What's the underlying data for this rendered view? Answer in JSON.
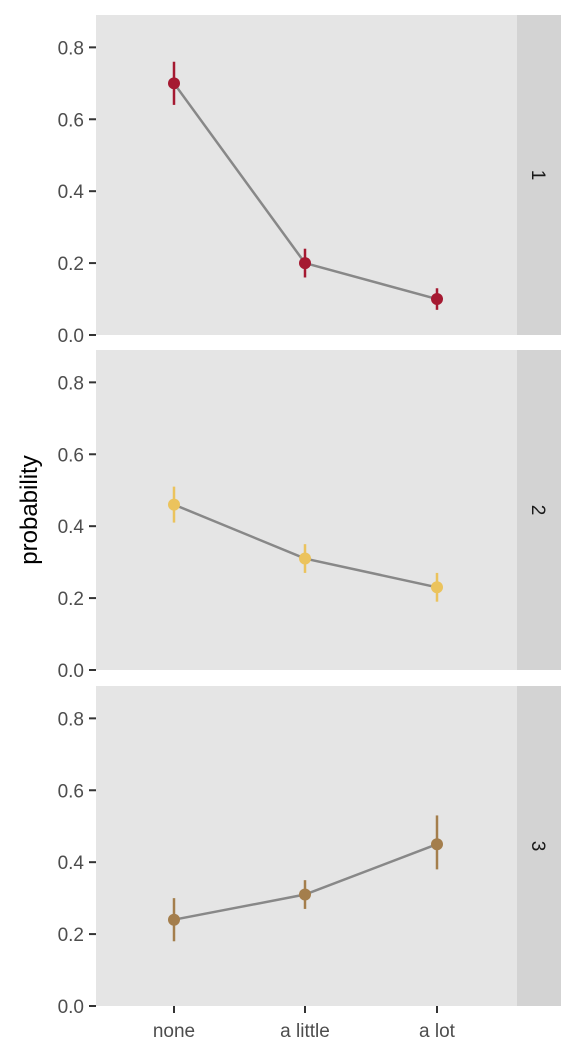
{
  "chart_data": {
    "type": "line",
    "facet_layout": "vertical",
    "categories": [
      "none",
      "a little",
      "a lot"
    ],
    "ylabel": "probability",
    "xlabel": "",
    "ylim": [
      0.0,
      0.89
    ],
    "y_ticks": [
      "0.0",
      "0.2",
      "0.4",
      "0.6",
      "0.8"
    ],
    "grid": false,
    "panel_background": "#e5e5e5",
    "strip_background": "#d3d3d3",
    "line_color": "#888888",
    "panels": [
      {
        "label": "1",
        "color": "#a51931",
        "values": [
          0.7,
          0.2,
          0.1
        ],
        "lower": [
          0.64,
          0.16,
          0.07
        ],
        "upper": [
          0.76,
          0.24,
          0.13
        ]
      },
      {
        "label": "2",
        "color": "#ebc35d",
        "values": [
          0.46,
          0.31,
          0.23
        ],
        "lower": [
          0.41,
          0.27,
          0.19
        ],
        "upper": [
          0.51,
          0.35,
          0.27
        ]
      },
      {
        "label": "3",
        "color": "#a47e4c",
        "values": [
          0.24,
          0.31,
          0.45
        ],
        "lower": [
          0.18,
          0.27,
          0.38
        ],
        "upper": [
          0.3,
          0.35,
          0.53
        ]
      }
    ]
  }
}
